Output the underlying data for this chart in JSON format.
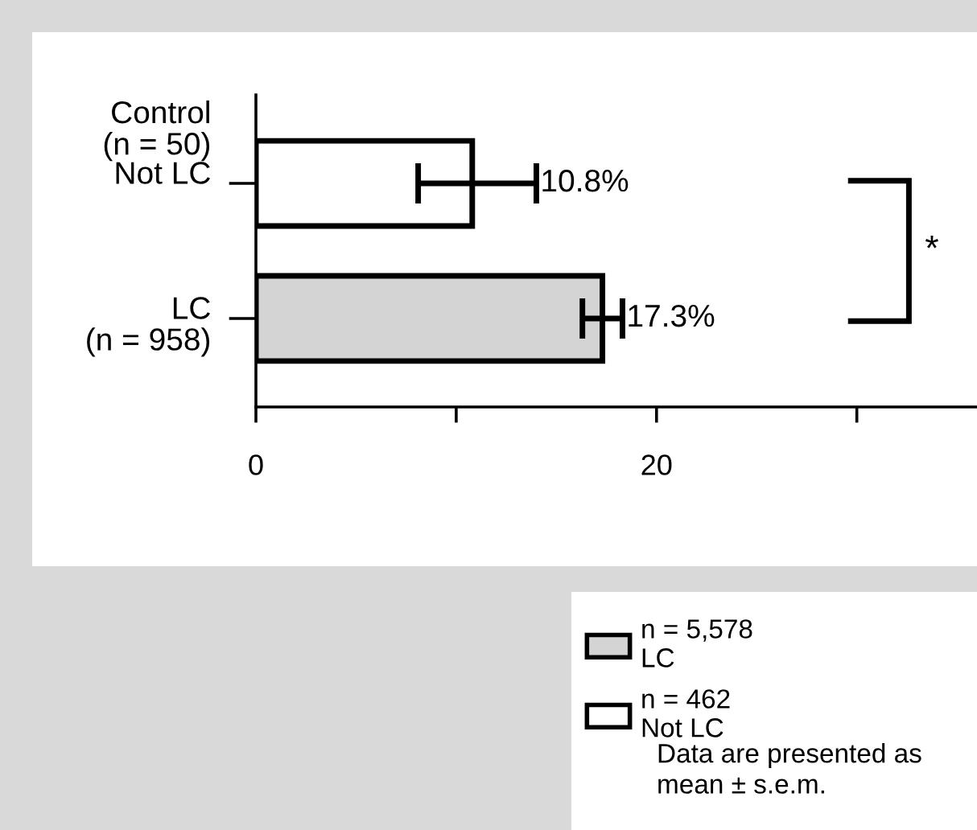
{
  "chart_data": {
    "type": "bar",
    "orientation": "horizontal",
    "categories": [
      "Not LC",
      "LC\n(n = 958)"
    ],
    "series": [
      {
        "name": "n = 5,578\nLC",
        "color": "#d4d4d4",
        "values": [
          null,
          17.3
        ],
        "errors": [
          null,
          [
            16.3,
            18.3
          ]
        ],
        "value_labels": [
          null,
          "17.3%"
        ]
      },
      {
        "name": "n = 462\nNot LC",
        "color": "#ffffff",
        "values": [
          10.8,
          null
        ],
        "errors": [
          [
            8.1,
            14.0
          ],
          null
        ],
        "value_labels": [
          "10.8%",
          null
        ]
      }
    ],
    "xlim": [
      0,
      36
    ],
    "xticks": [
      0,
      {
        "value": 10,
        "label": null
      },
      20,
      {
        "value": 30,
        "label": null
      }
    ],
    "grid": false,
    "legend": "bottom right",
    "annotations": [
      "Control\n(n = 50)",
      "*",
      "Data are presented as\nmean ± s.e.m."
    ]
  }
}
